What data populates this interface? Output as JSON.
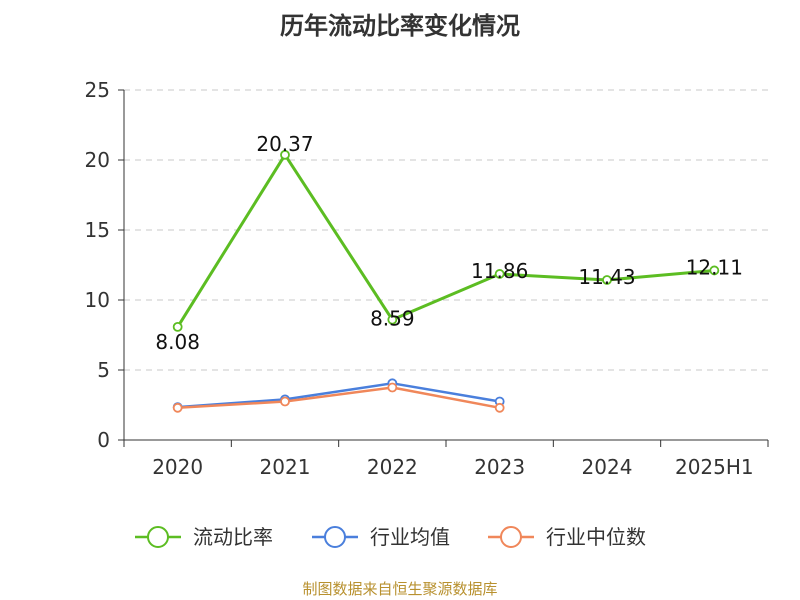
{
  "chart_data": {
    "type": "line",
    "title": "历年流动比率变化情况",
    "categories": [
      "2020",
      "2021",
      "2022",
      "2023",
      "2024",
      "2025H1"
    ],
    "ylim": [
      0,
      25
    ],
    "yticks": [
      "0",
      "5",
      "10",
      "15",
      "20",
      "25"
    ],
    "grid": true,
    "legend_position": "bottom",
    "series": [
      {
        "name": "流动比率",
        "color": "#5cbd22",
        "values": [
          8.08,
          20.37,
          8.59,
          11.86,
          11.43,
          12.11
        ],
        "labels": [
          "8.08",
          "20.37",
          "8.59",
          "11.86",
          "11.43",
          "12.11"
        ]
      },
      {
        "name": "行业均值",
        "color": "#4a7fdc",
        "values": [
          2.35,
          2.9,
          4.05,
          2.75,
          null,
          null
        ]
      },
      {
        "name": "行业中位数",
        "color": "#f0875a",
        "values": [
          2.3,
          2.75,
          3.75,
          2.3,
          null,
          null
        ]
      }
    ]
  },
  "footer": "制图数据来自恒生聚源数据库"
}
